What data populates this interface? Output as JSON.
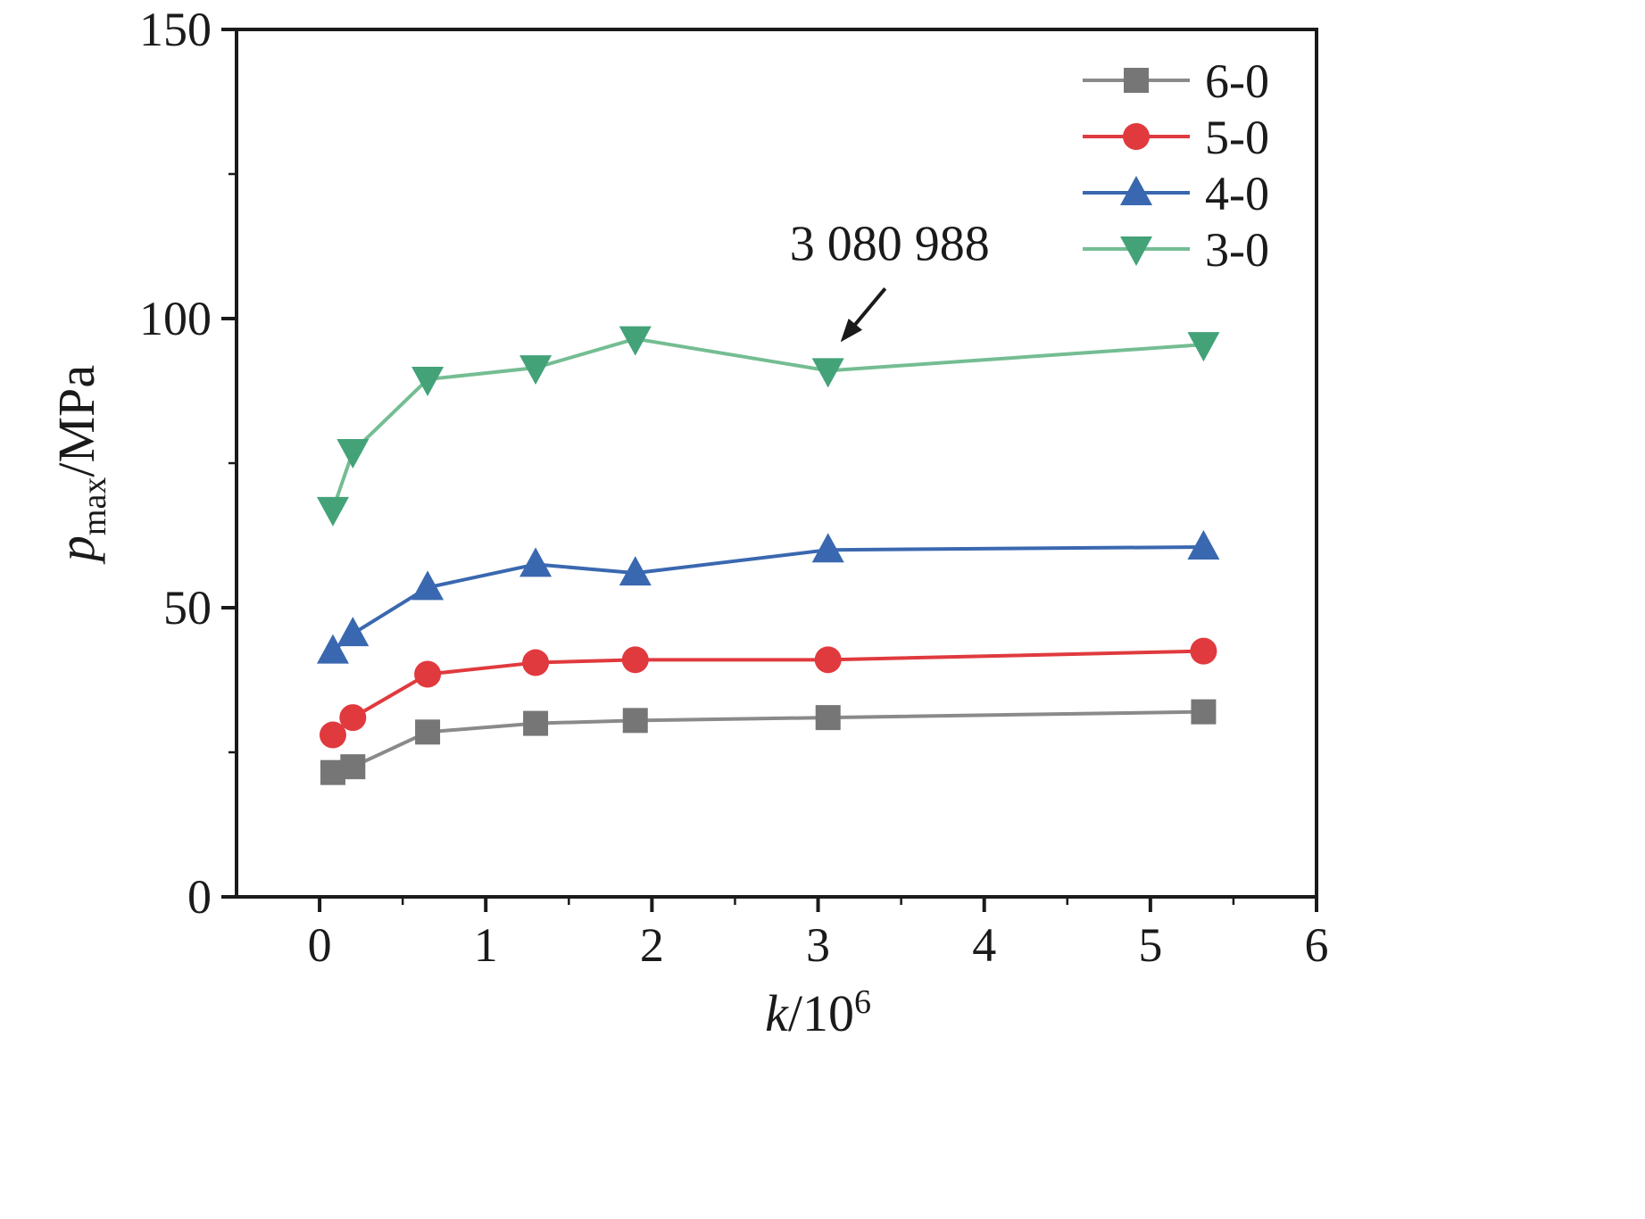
{
  "chart_data": {
    "type": "line",
    "title": "",
    "xlabel": {
      "italic": "k",
      "rest": "/10",
      "sup": "6"
    },
    "ylabel": {
      "italic": "p",
      "sub": "max",
      "rest": "/MPa"
    },
    "xlim": [
      -0.5,
      6
    ],
    "ylim": [
      0,
      150
    ],
    "x_ticks": [
      0,
      1,
      2,
      3,
      4,
      5,
      6
    ],
    "y_ticks": [
      0,
      50,
      100,
      150
    ],
    "x_minor_step": 0.5,
    "y_minor_step": 25,
    "grid": false,
    "x": [
      0.08,
      0.2,
      0.65,
      1.3,
      1.9,
      3.06,
      5.32
    ],
    "series": [
      {
        "name": "6-0",
        "marker": "square",
        "color": "#767676",
        "line_color": "#8a8a8a",
        "values": [
          21.5,
          22.5,
          28.5,
          30.0,
          30.5,
          31.0,
          32.0
        ]
      },
      {
        "name": "5-0",
        "marker": "circle",
        "color": "#e03a3e",
        "line_color": "#e03a3e",
        "values": [
          28.0,
          31.0,
          38.5,
          40.5,
          41.0,
          41.0,
          42.5
        ]
      },
      {
        "name": "4-0",
        "marker": "triangle-up",
        "color": "#3a68b0",
        "line_color": "#3a68b0",
        "values": [
          42.5,
          45.5,
          53.5,
          57.5,
          56.0,
          60.0,
          60.5
        ]
      },
      {
        "name": "3-0",
        "marker": "triangle-down",
        "color": "#44a278",
        "line_color": "#74bd92",
        "values": [
          67.0,
          77.0,
          89.5,
          91.5,
          96.5,
          91.0,
          95.5
        ]
      }
    ],
    "legend": {
      "position": "top-right",
      "order": [
        "6-0",
        "5-0",
        "4-0",
        "3-0"
      ]
    },
    "annotation": {
      "text": "3 080 988",
      "target_series": "3-0",
      "target_x": 3.06,
      "target_y": 91.0
    }
  },
  "colors": {
    "axis": "#1a1a1a",
    "background": "#ffffff"
  }
}
